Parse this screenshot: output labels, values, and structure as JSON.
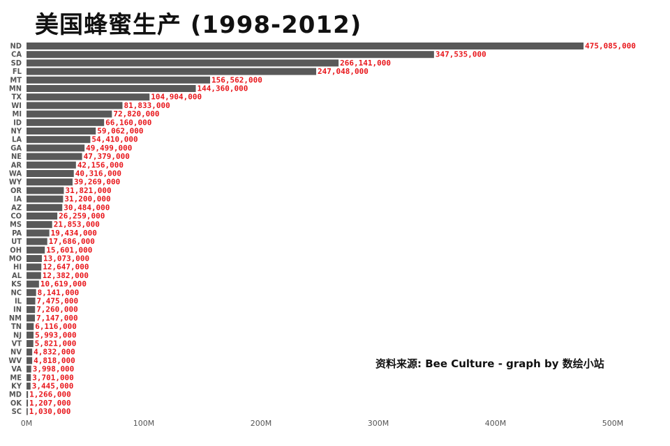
{
  "chart_data": {
    "type": "bar",
    "orientation": "horizontal",
    "title": "美国蜂蜜生产 (1998-2012)",
    "source_note": "资料来源: Bee Culture - graph by 数绘小站",
    "categories": [
      "ND",
      "CA",
      "SD",
      "FL",
      "MT",
      "MN",
      "TX",
      "WI",
      "MI",
      "ID",
      "NY",
      "LA",
      "GA",
      "NE",
      "AR",
      "WA",
      "WY",
      "OR",
      "IA",
      "AZ",
      "CO",
      "MS",
      "PA",
      "UT",
      "OH",
      "MO",
      "HI",
      "AL",
      "KS",
      "NC",
      "IL",
      "IN",
      "NM",
      "TN",
      "NJ",
      "VT",
      "NV",
      "WV",
      "VA",
      "ME",
      "KY",
      "MD",
      "OK",
      "SC"
    ],
    "values": [
      475085000,
      347535000,
      266141000,
      247048000,
      156562000,
      144360000,
      104904000,
      81833000,
      72820000,
      66160000,
      59062000,
      54410000,
      49499000,
      47379000,
      42156000,
      40316000,
      39269000,
      31821000,
      31200000,
      30484000,
      26259000,
      21853000,
      19434000,
      17686000,
      15601000,
      13073000,
      12647000,
      12382000,
      10619000,
      8141000,
      7475000,
      7260000,
      7147000,
      6116000,
      5993000,
      5821000,
      4832000,
      4818000,
      3998000,
      3701000,
      3445000,
      1266000,
      1207000,
      1030000
    ],
    "value_labels": [
      "475,085,000",
      "347,535,000",
      "266,141,000",
      "247,048,000",
      "156,562,000",
      "144,360,000",
      "104,904,000",
      "81,833,000",
      "72,820,000",
      "66,160,000",
      "59,062,000",
      "54,410,000",
      "49,499,000",
      "47,379,000",
      "42,156,000",
      "40,316,000",
      "39,269,000",
      "31,821,000",
      "31,200,000",
      "30,484,000",
      "26,259,000",
      "21,853,000",
      "19,434,000",
      "17,686,000",
      "15,601,000",
      "13,073,000",
      "12,647,000",
      "12,382,000",
      "10,619,000",
      "8,141,000",
      "7,475,000",
      "7,260,000",
      "7,147,000",
      "6,116,000",
      "5,993,000",
      "5,821,000",
      "4,832,000",
      "4,818,000",
      "3,998,000",
      "3,701,000",
      "3,445,000",
      "1,266,000",
      "1,207,000",
      "1,030,000"
    ],
    "x_ticks": [
      {
        "value": 0,
        "label": "0M"
      },
      {
        "value": 100000000,
        "label": "100M"
      },
      {
        "value": 200000000,
        "label": "200M"
      },
      {
        "value": 300000000,
        "label": "300M"
      },
      {
        "value": 400000000,
        "label": "400M"
      },
      {
        "value": 500000000,
        "label": "500M"
      }
    ],
    "xlim": [
      0,
      500000000
    ],
    "grid": false,
    "colors": {
      "bar": "#595959",
      "value_label": "#e8161b",
      "axis_text": "#555555",
      "title": "#111111"
    }
  }
}
